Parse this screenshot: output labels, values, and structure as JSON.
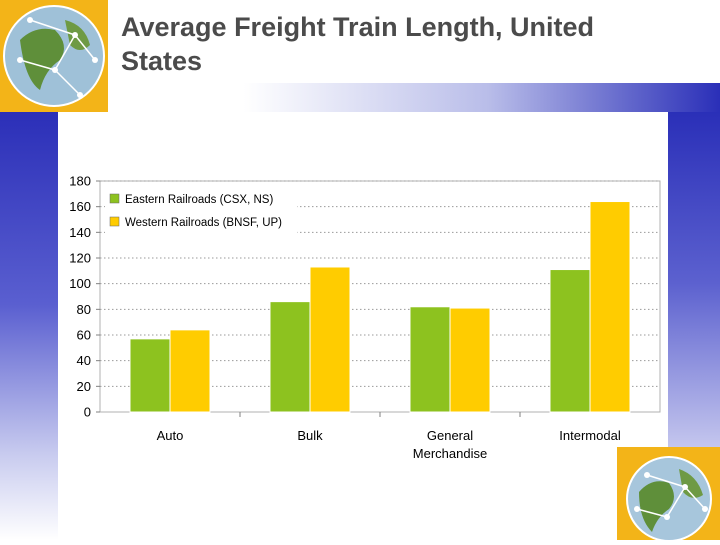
{
  "title": "Average Freight Train Length, United States",
  "colors": {
    "eastern": "#8dc21f",
    "western": "#ffcc00"
  },
  "chart_data": {
    "type": "bar",
    "categories": [
      [
        "Auto"
      ],
      [
        "Bulk"
      ],
      [
        "General",
        "Merchandise"
      ],
      [
        "Intermodal"
      ]
    ],
    "series": [
      {
        "name": "Eastern Railroads (CSX, NS)",
        "values": [
          57,
          86,
          82,
          111
        ]
      },
      {
        "name": "Western Railroads (BNSF, UP)",
        "values": [
          64,
          113,
          81,
          164
        ]
      }
    ],
    "ylim": [
      0,
      180
    ],
    "yticks": [
      0,
      20,
      40,
      60,
      80,
      100,
      120,
      140,
      160,
      180
    ],
    "grid": true,
    "legend_position": "top-left"
  }
}
